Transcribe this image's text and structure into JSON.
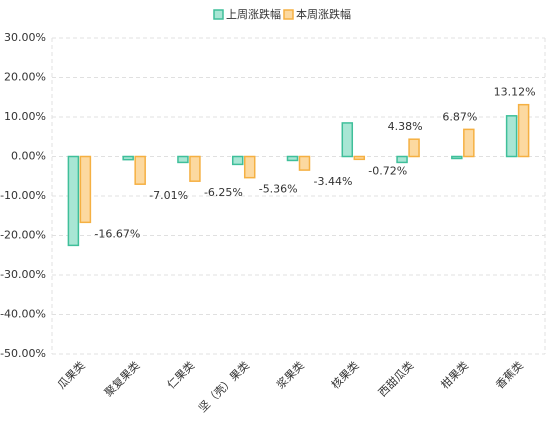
{
  "chart_data": {
    "type": "bar",
    "categories": [
      "瓜果类",
      "聚复果类",
      "仁果类",
      "坚（壳）果类",
      "浆果类",
      "核果类",
      "西甜瓜类",
      "柑果类",
      "香蕉类"
    ],
    "series": [
      {
        "name": "上周涨跌幅",
        "color": "#3fbf9a",
        "fill": "#a8e6d4",
        "values": [
          -22.5,
          -0.8,
          -1.5,
          -2,
          -1,
          8.5,
          -1.5,
          -0.5,
          10.3
        ]
      },
      {
        "name": "本周涨跌幅",
        "color": "#f5b042",
        "fill": "#fcd9a0",
        "values": [
          -16.67,
          -7.01,
          -6.25,
          -5.36,
          -3.44,
          -0.72,
          4.38,
          6.87,
          13.12
        ],
        "value_labels": [
          "-16.67%",
          "-7.01%",
          "-6.25%",
          "-5.36%",
          "-3.44%",
          "-0.72%",
          "4.38%",
          "6.87%",
          "13.12%"
        ]
      }
    ],
    "ylim": [
      -50,
      30
    ],
    "yticks": [
      {
        "value": 30,
        "label": "30.00%"
      },
      {
        "value": 20,
        "label": "20.00%"
      },
      {
        "value": 10,
        "label": "10.00%"
      },
      {
        "value": 0,
        "label": "0.00%"
      },
      {
        "value": -10,
        "label": "-10.00%"
      },
      {
        "value": -20,
        "label": "-20.00%"
      },
      {
        "value": -30,
        "label": "-30.00%"
      },
      {
        "value": -40,
        "label": "-40.00%"
      },
      {
        "value": -50,
        "label": "-50.00%"
      }
    ],
    "grid": true
  }
}
